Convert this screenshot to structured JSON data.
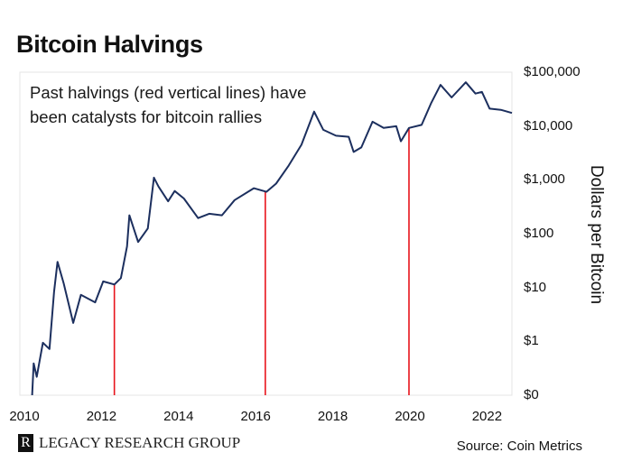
{
  "chart_data": {
    "type": "line",
    "title": "Bitcoin Halvings",
    "annotation": [
      "Past halvings (red vertical lines) have",
      "been catalysts for bitcoin rallies"
    ],
    "ylabel": "Dollars per Bitcoin",
    "yscale": "log",
    "ylim": [
      0.1,
      100000
    ],
    "xlim": [
      2009.85,
      2022.66
    ],
    "y_ticks": [
      {
        "value": 100000,
        "label": "$100,000"
      },
      {
        "value": 10000,
        "label": "$10,000"
      },
      {
        "value": 1000,
        "label": "$1,000"
      },
      {
        "value": 100,
        "label": "$100"
      },
      {
        "value": 10,
        "label": "$10"
      },
      {
        "value": 1,
        "label": "$1"
      },
      {
        "value": 0.1,
        "label": "$0"
      }
    ],
    "x_ticks": [
      {
        "value": 2010,
        "label": "2010"
      },
      {
        "value": 2012,
        "label": "2012"
      },
      {
        "value": 2014,
        "label": "2014"
      },
      {
        "value": 2016,
        "label": "2016"
      },
      {
        "value": 2018,
        "label": "2018"
      },
      {
        "value": 2020,
        "label": "2020"
      },
      {
        "value": 2022,
        "label": "2022"
      }
    ],
    "series": [
      {
        "name": "Bitcoin price",
        "color": "#1c2f5e",
        "points": [
          [
            2010.17,
            0.1
          ],
          [
            2010.21,
            0.39
          ],
          [
            2010.29,
            0.22
          ],
          [
            2010.45,
            0.94
          ],
          [
            2010.62,
            0.72
          ],
          [
            2010.74,
            8.4
          ],
          [
            2010.83,
            30
          ],
          [
            2010.99,
            12
          ],
          [
            2011.24,
            2.2
          ],
          [
            2011.44,
            7.3
          ],
          [
            2011.81,
            5.3
          ],
          [
            2012.02,
            13
          ],
          [
            2012.31,
            11.4
          ],
          [
            2012.48,
            15
          ],
          [
            2012.64,
            58
          ],
          [
            2012.7,
            220
          ],
          [
            2012.93,
            70
          ],
          [
            2013.18,
            125
          ],
          [
            2013.34,
            1100
          ],
          [
            2013.46,
            750
          ],
          [
            2013.71,
            400
          ],
          [
            2013.88,
            620
          ],
          [
            2014.12,
            450
          ],
          [
            2014.49,
            195
          ],
          [
            2014.78,
            235
          ],
          [
            2015.11,
            220
          ],
          [
            2015.44,
            420
          ],
          [
            2015.94,
            700
          ],
          [
            2016.27,
            600
          ],
          [
            2016.52,
            850
          ],
          [
            2016.85,
            1850
          ],
          [
            2017.18,
            4500
          ],
          [
            2017.51,
            18500
          ],
          [
            2017.75,
            8500
          ],
          [
            2018.08,
            6600
          ],
          [
            2018.41,
            6300
          ],
          [
            2018.54,
            3300
          ],
          [
            2018.74,
            4000
          ],
          [
            2019.03,
            12000
          ],
          [
            2019.32,
            9200
          ],
          [
            2019.65,
            9900
          ],
          [
            2019.77,
            5200
          ],
          [
            2019.98,
            9200
          ],
          [
            2020.31,
            10500
          ],
          [
            2020.56,
            27000
          ],
          [
            2020.8,
            58000
          ],
          [
            2021.09,
            34000
          ],
          [
            2021.46,
            65000
          ],
          [
            2021.71,
            40000
          ],
          [
            2021.88,
            43000
          ],
          [
            2022.08,
            21000
          ],
          [
            2022.37,
            20000
          ],
          [
            2022.66,
            17500
          ]
        ]
      }
    ],
    "halvings": [
      {
        "year": 2012.31,
        "price": 11.4
      },
      {
        "year": 2016.24,
        "price": 600
      },
      {
        "year": 2019.98,
        "price": 9200
      }
    ],
    "halving_color": "#e8141c",
    "source": "Source: Coin Metrics"
  },
  "brand": {
    "logo_letter": "R",
    "name": "LEGACY RESEARCH GROUP"
  }
}
